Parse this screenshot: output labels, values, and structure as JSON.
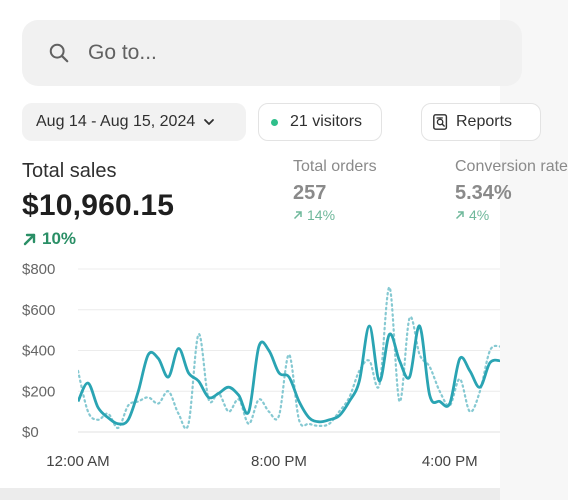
{
  "search": {
    "placeholder": "Go to..."
  },
  "filters": {
    "date_range": "Aug 14 - Aug 15, 2024",
    "visitors": "21 visitors",
    "report": "Reports"
  },
  "metrics": {
    "total_sales": {
      "label": "Total sales",
      "value": "$10,960.15",
      "change": "10%"
    },
    "total_orders": {
      "label": "Total orders",
      "value": "257",
      "change": "14%"
    },
    "conversion": {
      "label": "Conversion rate",
      "value": "5.34%",
      "change": "4%"
    }
  },
  "colors": {
    "accent": "#2aa4b3",
    "accent_dotted": "#86c9d2",
    "positive": "#2a8f66"
  },
  "chart_data": {
    "type": "line",
    "ylim": [
      0,
      800
    ],
    "y_ticks": [
      "$800",
      "$600",
      "$400",
      "$200",
      "$0"
    ],
    "x_ticks": [
      "12:00 AM",
      "8:00 PM",
      "4:00 PM"
    ],
    "x_range": [
      0,
      42
    ],
    "x_tick_positions": [
      0,
      20,
      37
    ],
    "series": [
      {
        "style": "solid",
        "x": [
          0,
          1,
          2,
          3,
          4,
          5,
          6,
          7,
          8,
          9,
          10,
          11,
          12,
          13,
          14,
          15,
          16,
          17,
          18,
          19,
          20,
          21,
          22,
          23,
          24,
          25,
          26,
          27,
          28,
          29,
          30,
          31,
          32,
          33,
          34,
          35,
          36,
          37,
          38,
          39,
          40,
          41,
          42
        ],
        "values": [
          150,
          240,
          120,
          70,
          40,
          60,
          200,
          380,
          360,
          270,
          410,
          290,
          250,
          170,
          190,
          220,
          180,
          100,
          420,
          400,
          290,
          270,
          150,
          70,
          50,
          60,
          80,
          150,
          250,
          520,
          250,
          480,
          350,
          270,
          520,
          180,
          150,
          140,
          360,
          300,
          220,
          340,
          350
        ]
      },
      {
        "style": "dotted",
        "x": [
          0,
          1,
          2,
          3,
          4,
          5,
          6,
          7,
          8,
          9,
          10,
          11,
          12,
          13,
          14,
          15,
          16,
          17,
          18,
          19,
          20,
          21,
          22,
          23,
          24,
          25,
          26,
          27,
          28,
          29,
          30,
          31,
          32,
          33,
          34,
          35,
          36,
          37,
          38,
          39,
          40,
          41,
          42
        ],
        "values": [
          300,
          100,
          60,
          90,
          20,
          130,
          150,
          170,
          140,
          200,
          90,
          40,
          480,
          160,
          190,
          100,
          160,
          40,
          160,
          100,
          80,
          380,
          60,
          40,
          30,
          40,
          100,
          170,
          300,
          350,
          230,
          710,
          150,
          560,
          380,
          320,
          200,
          130,
          260,
          100,
          200,
          400,
          420
        ]
      }
    ]
  }
}
